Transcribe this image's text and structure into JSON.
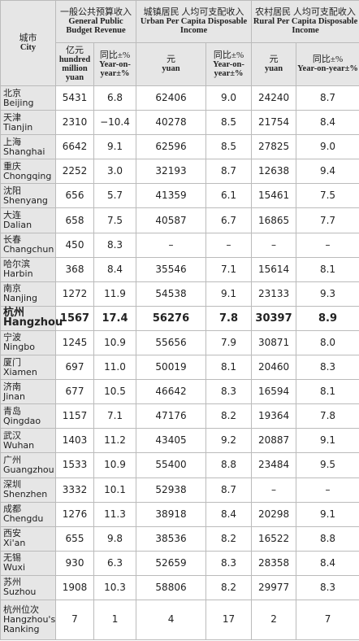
{
  "header": {
    "city": {
      "zh": "城市",
      "en": "City"
    },
    "groups": [
      {
        "zh": "一般公共预算收入",
        "en": "General Public Budget Revenue",
        "cols": [
          {
            "zh": "亿元",
            "en": "hundred million yuan"
          },
          {
            "zh": "同比±%",
            "en": "Year-on-year±%"
          }
        ]
      },
      {
        "zh": "城镇居民 人均可支配收入",
        "en": "Urban Per Capita Disposable Income",
        "cols": [
          {
            "zh": "元",
            "en": "yuan"
          },
          {
            "zh": "同比±%",
            "en": "Year-on-year±%"
          }
        ]
      },
      {
        "zh": "农村居民 人均可支配收入",
        "en": "Rural Per Capita Disposable Income",
        "cols": [
          {
            "zh": "元",
            "en": "yuan"
          },
          {
            "zh": "同比±%",
            "en": "Year-on-year±%"
          }
        ]
      }
    ]
  },
  "table": {
    "rows": [
      [
        "北京",
        "Beijing",
        "5431",
        "6.8",
        "62406",
        "9.0",
        "24240",
        "8.7"
      ],
      [
        "天津",
        "Tianjin",
        "2310",
        "−10.4",
        "40278",
        "8.5",
        "21754",
        "8.4"
      ],
      [
        "上海",
        "Shanghai",
        "6642",
        "9.1",
        "62596",
        "8.5",
        "27825",
        "9.0"
      ],
      [
        "重庆",
        "Chongqing",
        "2252",
        "3.0",
        "32193",
        "8.7",
        "12638",
        "9.4"
      ],
      [
        "沈阳",
        "Shenyang",
        "656",
        "5.7",
        "41359",
        "6.1",
        "15461",
        "7.5"
      ],
      [
        "大连",
        "Dalian",
        "658",
        "7.5",
        "40587",
        "6.7",
        "16865",
        "7.7"
      ],
      [
        "长春",
        "Changchun",
        "450",
        "8.3",
        "–",
        "–",
        "–",
        "–"
      ],
      [
        "哈尔滨",
        "Harbin",
        "368",
        "8.4",
        "35546",
        "7.1",
        "15614",
        "8.1"
      ],
      [
        "南京",
        "Nanjing",
        "1272",
        "11.9",
        "54538",
        "9.1",
        "23133",
        "9.3"
      ],
      [
        "杭州",
        "Hangzhou",
        "1567",
        "17.4",
        "56276",
        "7.8",
        "30397",
        "8.9"
      ],
      [
        "宁波",
        "Ningbo",
        "1245",
        "10.9",
        "55656",
        "7.9",
        "30871",
        "8.0"
      ],
      [
        "厦门",
        "Xiamen",
        "697",
        "11.0",
        "50019",
        "8.1",
        "20460",
        "8.3"
      ],
      [
        "济南",
        "Jinan",
        "677",
        "10.5",
        "46642",
        "8.3",
        "16594",
        "8.1"
      ],
      [
        "青岛",
        "Qingdao",
        "1157",
        "7.1",
        "47176",
        "8.2",
        "19364",
        "7.8"
      ],
      [
        "武汉",
        "Wuhan",
        "1403",
        "11.2",
        "43405",
        "9.2",
        "20887",
        "9.1"
      ],
      [
        "广州",
        "Guangzhou",
        "1533",
        "10.9",
        "55400",
        "8.8",
        "23484",
        "9.5"
      ],
      [
        "深圳",
        "Shenzhen",
        "3332",
        "10.1",
        "52938",
        "8.7",
        "–",
        "–"
      ],
      [
        "成都",
        "Chengdu",
        "1276",
        "11.3",
        "38918",
        "8.4",
        "20298",
        "9.1"
      ],
      [
        "西安",
        "Xi'an",
        "655",
        "9.8",
        "38536",
        "8.2",
        "16522",
        "8.8"
      ],
      [
        "无锡",
        "Wuxi",
        "930",
        "6.3",
        "52659",
        "8.3",
        "28358",
        "8.4"
      ],
      [
        "苏州",
        "Suzhou",
        "1908",
        "10.3",
        "58806",
        "8.2",
        "29977",
        "8.3"
      ],
      [
        "杭州位次",
        "Hangzhou's Ranking",
        "7",
        "1",
        "4",
        "17",
        "2",
        "7"
      ]
    ]
  }
}
